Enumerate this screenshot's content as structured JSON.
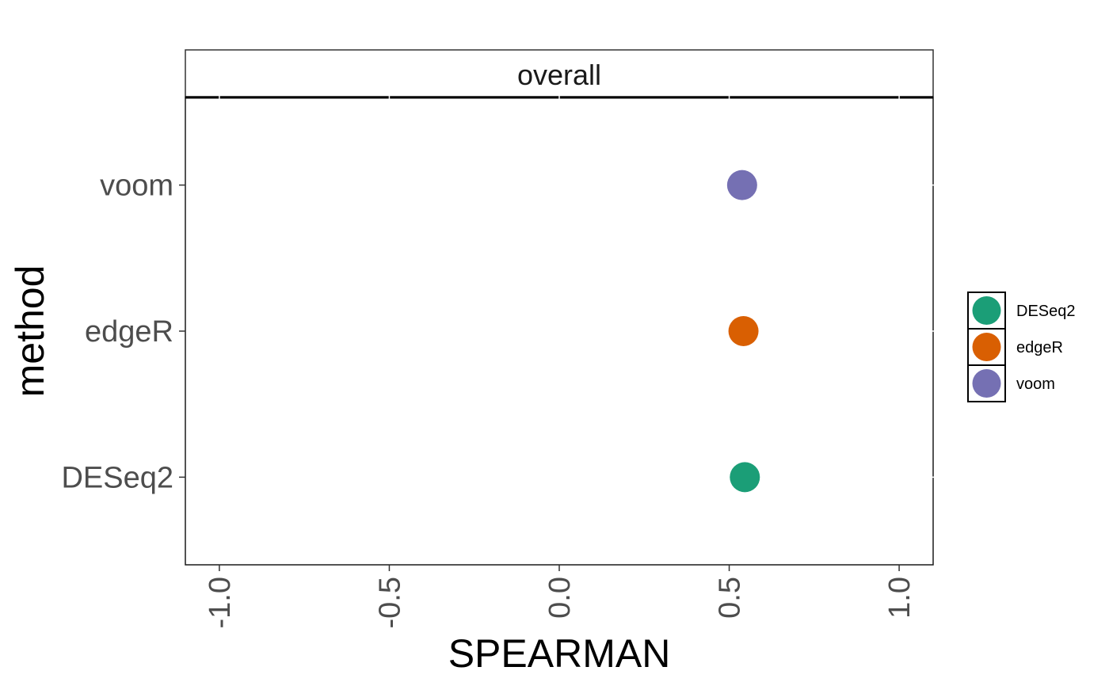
{
  "chart_data": {
    "type": "scatter",
    "facet": "overall",
    "xlabel": "SPEARMAN",
    "ylabel": "method",
    "xlim": [
      -1.1,
      1.1
    ],
    "x_ticks": [
      -1.0,
      -0.5,
      0.0,
      0.5,
      1.0
    ],
    "x_tick_labels": [
      "-1.0",
      "-0.5",
      "0.0",
      "0.5",
      "1.0"
    ],
    "categories": [
      "DESeq2",
      "edgeR",
      "voom"
    ],
    "series": [
      {
        "name": "DESeq2",
        "x": 0.546,
        "y": "DESeq2",
        "color": "#1B9E77"
      },
      {
        "name": "edgeR",
        "x": 0.542,
        "y": "edgeR",
        "color": "#D95F02"
      },
      {
        "name": "voom",
        "x": 0.538,
        "y": "voom",
        "color": "#7570B3"
      }
    ],
    "legend": {
      "position": "right",
      "entries": [
        "DESeq2",
        "edgeR",
        "voom"
      ]
    },
    "grid": false
  }
}
